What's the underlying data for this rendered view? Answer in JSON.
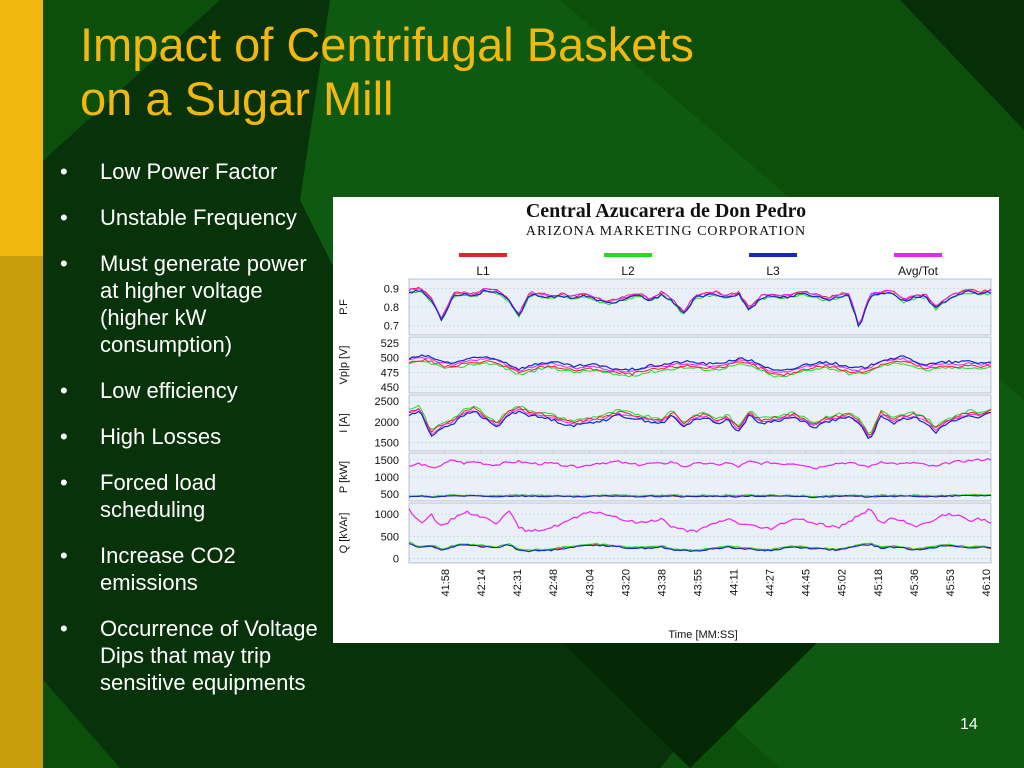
{
  "slide": {
    "title_lines": [
      "Impact of Centrifugal Baskets",
      "on a Sugar Mill"
    ],
    "bullets": [
      "Low Power Factor",
      "Unstable Frequency",
      "Must generate power at higher voltage (higher kW consumption)",
      "Low efficiency",
      "High Losses",
      "Forced load scheduling",
      "Increase CO2 emissions",
      "Occurrence of Voltage Dips that may trip sensitive equipments"
    ],
    "page_number": "14",
    "colors": {
      "background": "#0b4f0b",
      "title": "#f2b80f",
      "accent_bar": "#f2b80f",
      "text": "#ffffff"
    }
  },
  "chart_data": {
    "type": "line",
    "title": "Central Azucarera de Don Pedro",
    "subtitle": "ARIZONA MARKETING CORPORATION",
    "xlabel": "Time [MM:SS]",
    "x_ticks": [
      "41:58",
      "42:14",
      "42:31",
      "42:48",
      "43:04",
      "43:20",
      "43:38",
      "43:55",
      "44:11",
      "44:27",
      "44:45",
      "45:02",
      "45:18",
      "45:36",
      "45:53",
      "46:10"
    ],
    "legend": [
      {
        "name": "L1",
        "color": "#e8202a"
      },
      {
        "name": "L2",
        "color": "#22dd22"
      },
      {
        "name": "L3",
        "color": "#1428c8"
      },
      {
        "name": "Avg/Tot",
        "color": "#ee22ee"
      }
    ],
    "legend_position": "top",
    "grid": true,
    "panels": [
      {
        "ylabel": "P.F",
        "ticks": [
          "0.9",
          "0.8",
          "0.7"
        ],
        "ylim": [
          0.65,
          0.95
        ],
        "series": {
          "avg": [
            0.89,
            0.9,
            0.85,
            0.74,
            0.87,
            0.88,
            0.87,
            0.9,
            0.89,
            0.85,
            0.76,
            0.88,
            0.87,
            0.86,
            0.87,
            0.86,
            0.87,
            0.85,
            0.83,
            0.84,
            0.86,
            0.87,
            0.84,
            0.88,
            0.84,
            0.77,
            0.86,
            0.87,
            0.88,
            0.86,
            0.88,
            0.79,
            0.86,
            0.87,
            0.86,
            0.87,
            0.88,
            0.87,
            0.85,
            0.86,
            0.88,
            0.7,
            0.87,
            0.88,
            0.89,
            0.84,
            0.86,
            0.87,
            0.8,
            0.85,
            0.88,
            0.89,
            0.88,
            0.89
          ],
          "l1_offset": 0.0,
          "l2_offset": -0.015,
          "l3_offset": -0.01
        }
      },
      {
        "ylabel": "Vp|p [V]",
        "ticks": [
          "525",
          "500",
          "475",
          "450"
        ],
        "ylim": [
          440,
          535
        ],
        "series": {
          "avg": [
            495,
            500,
            498,
            490,
            488,
            493,
            496,
            498,
            495,
            487,
            478,
            483,
            488,
            490,
            486,
            482,
            484,
            485,
            480,
            478,
            476,
            479,
            483,
            485,
            488,
            490,
            489,
            487,
            486,
            491,
            495,
            493,
            486,
            476,
            474,
            478,
            485,
            488,
            490,
            486,
            480,
            479,
            483,
            493,
            496,
            498,
            492,
            485,
            487,
            490,
            489,
            491,
            488,
            490
          ],
          "l1_offset": -4,
          "l2_offset": -7,
          "l3_offset": 3
        }
      },
      {
        "ylabel": "I [A]",
        "ticks": [
          "2500",
          "2000",
          "1500"
        ],
        "ylim": [
          1300,
          2650
        ],
        "series": {
          "avg": [
            2200,
            2300,
            1700,
            1900,
            2000,
            2200,
            2300,
            2100,
            1900,
            2200,
            2300,
            2200,
            2150,
            2100,
            2000,
            1950,
            2000,
            2050,
            2100,
            2200,
            2150,
            2100,
            2050,
            2000,
            2200,
            1900,
            2100,
            2150,
            2000,
            2100,
            1800,
            2200,
            2000,
            2050,
            2100,
            2150,
            2050,
            1900,
            2050,
            2100,
            2150,
            2000,
            1600,
            2200,
            2000,
            2100,
            2150,
            2050,
            1800,
            2000,
            2100,
            2200,
            2150,
            2250
          ],
          "l1_offset": 40,
          "l2_offset": 80,
          "l3_offset": -40
        }
      },
      {
        "ylabel": "P [kW]",
        "ticks": [
          "1500",
          "1000",
          "500"
        ],
        "ylim": [
          300,
          1700
        ],
        "series": {
          "avg": [
            1300,
            1400,
            1250,
            1350,
            1500,
            1400,
            1450,
            1380,
            1350,
            1420,
            1450,
            1400,
            1380,
            1400,
            1350,
            1300,
            1320,
            1400,
            1420,
            1450,
            1380,
            1350,
            1400,
            1380,
            1450,
            1300,
            1380,
            1400,
            1350,
            1420,
            1300,
            1450,
            1400,
            1420,
            1380,
            1400,
            1350,
            1250,
            1350,
            1400,
            1420,
            1350,
            1300,
            1450,
            1400,
            1380,
            1420,
            1350,
            1300,
            1400,
            1450,
            1480,
            1500,
            1520
          ],
          "phase": [
            430,
            450,
            420,
            440,
            470,
            450,
            460,
            445,
            440,
            455,
            460,
            450,
            445,
            450,
            440,
            430,
            435,
            450,
            455,
            460,
            445,
            440,
            450,
            445,
            460,
            430,
            445,
            450,
            440,
            455,
            430,
            460,
            450,
            455,
            445,
            450,
            440,
            420,
            440,
            450,
            455,
            440,
            430,
            460,
            450,
            445,
            455,
            440,
            430,
            450,
            460,
            465,
            470,
            475
          ]
        }
      },
      {
        "ylabel": "Q [kVAr]",
        "ticks": [
          "1000",
          "500",
          "0"
        ],
        "ylim": [
          -100,
          1250
        ],
        "series": {
          "avg": [
            1100,
            800,
            1000,
            700,
            900,
            1050,
            1000,
            900,
            800,
            1100,
            700,
            600,
            650,
            700,
            800,
            900,
            1000,
            1050,
            1000,
            900,
            850,
            800,
            850,
            900,
            700,
            650,
            600,
            700,
            800,
            900,
            800,
            750,
            700,
            650,
            800,
            900,
            850,
            800,
            750,
            700,
            800,
            1000,
            1100,
            800,
            900,
            850,
            700,
            800,
            900,
            1000,
            950,
            850,
            900,
            800
          ],
          "phase": [
            350,
            250,
            300,
            200,
            280,
            320,
            300,
            270,
            250,
            330,
            200,
            180,
            190,
            200,
            240,
            270,
            300,
            320,
            300,
            270,
            250,
            240,
            250,
            270,
            200,
            190,
            180,
            200,
            240,
            270,
            240,
            220,
            200,
            190,
            240,
            270,
            250,
            240,
            220,
            200,
            240,
            300,
            330,
            240,
            270,
            250,
            200,
            240,
            270,
            300,
            280,
            250,
            270,
            240
          ]
        }
      }
    ]
  }
}
